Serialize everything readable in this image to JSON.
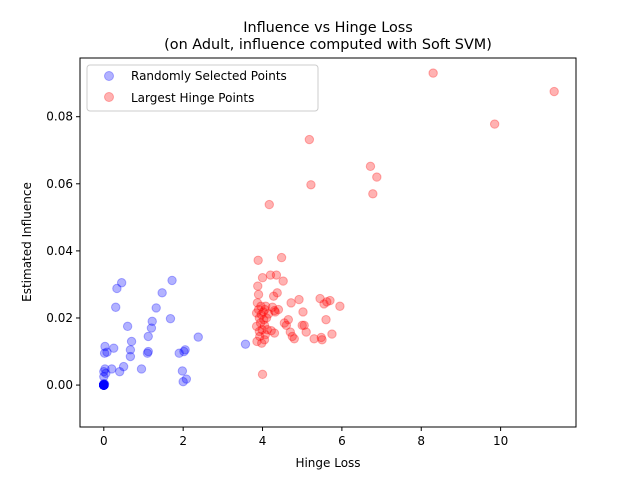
{
  "chart_data": {
    "type": "scatter",
    "title": "Influence vs Hinge Loss",
    "subtitle": "(on Adult, influence computed with Soft SVM)",
    "xlabel": "Hinge Loss",
    "ylabel": "Estimated Influence",
    "xlim": [
      -0.6,
      11.9
    ],
    "ylim": [
      -0.0125,
      0.0975
    ],
    "xticks": [
      0,
      2,
      4,
      6,
      8,
      10
    ],
    "xtick_labels": [
      "0",
      "2",
      "4",
      "6",
      "8",
      "10"
    ],
    "yticks": [
      0.0,
      0.02,
      0.04,
      0.06,
      0.08
    ],
    "ytick_labels": [
      "0.00",
      "0.02",
      "0.04",
      "0.06",
      "0.08"
    ],
    "grid": false,
    "legend_position": "upper-left",
    "series": [
      {
        "name": "Randomly Selected Points",
        "color": "#0000ff",
        "alpha": 0.3,
        "points": [
          [
            0,
            0
          ],
          [
            0,
            0
          ],
          [
            0,
            0
          ],
          [
            0,
            0
          ],
          [
            0,
            0
          ],
          [
            0,
            0
          ],
          [
            0,
            0
          ],
          [
            0,
            0
          ],
          [
            0,
            0
          ],
          [
            0,
            0
          ],
          [
            0,
            0
          ],
          [
            0,
            0
          ],
          [
            0,
            0
          ],
          [
            0,
            0
          ],
          [
            0,
            0
          ],
          [
            0,
            0
          ],
          [
            0,
            0
          ],
          [
            0,
            0
          ],
          [
            0,
            0
          ],
          [
            0,
            0
          ],
          [
            0,
            0
          ],
          [
            0,
            0
          ],
          [
            0,
            0
          ],
          [
            0,
            0
          ],
          [
            0,
            0
          ],
          [
            0,
            0
          ],
          [
            0,
            0
          ],
          [
            0,
            0
          ],
          [
            0,
            0
          ],
          [
            0,
            0
          ],
          [
            0,
            0
          ],
          [
            0,
            0
          ],
          [
            0,
            0
          ],
          [
            0,
            0
          ],
          [
            0,
            0
          ],
          [
            0,
            0
          ],
          [
            0,
            0
          ],
          [
            0,
            0
          ],
          [
            0,
            0
          ],
          [
            0,
            0
          ],
          [
            0,
            0.0002
          ],
          [
            0.02,
            0.0003
          ],
          [
            0,
            0.0004
          ],
          [
            0.01,
            0.0001
          ],
          [
            0,
            0.0025
          ],
          [
            0,
            0.004
          ],
          [
            0.03,
            0.0048
          ],
          [
            0.05,
            0.0035
          ],
          [
            0.02,
            0.0095
          ],
          [
            0.08,
            0.0098
          ],
          [
            0.03,
            0.0115
          ],
          [
            0.25,
            0.011
          ],
          [
            0.3,
            0.0232
          ],
          [
            0.33,
            0.0288
          ],
          [
            0.45,
            0.0305
          ],
          [
            0.2,
            0.0048
          ],
          [
            0.4,
            0.004
          ],
          [
            0.5,
            0.0055
          ],
          [
            0.6,
            0.0175
          ],
          [
            0.67,
            0.0085
          ],
          [
            0.67,
            0.0105
          ],
          [
            0.7,
            0.013
          ],
          [
            0.95,
            0.0048
          ],
          [
            1.1,
            0.0095
          ],
          [
            1.12,
            0.01
          ],
          [
            1.12,
            0.0145
          ],
          [
            1.2,
            0.017
          ],
          [
            1.22,
            0.019
          ],
          [
            1.32,
            0.023
          ],
          [
            1.47,
            0.0275
          ],
          [
            1.68,
            0.0198
          ],
          [
            1.72,
            0.0312
          ],
          [
            1.9,
            0.0095
          ],
          [
            1.98,
            0.0042
          ],
          [
            2.0,
            0.001
          ],
          [
            2.02,
            0.01
          ],
          [
            2.05,
            0.0105
          ],
          [
            2.08,
            0.0018
          ],
          [
            2.38,
            0.0143
          ],
          [
            3.57,
            0.0122
          ]
        ]
      },
      {
        "name": "Largest Hinge Points",
        "color": "#ff0000",
        "alpha": 0.3,
        "points": [
          [
            3.85,
            0.0215
          ],
          [
            3.85,
            0.0175
          ],
          [
            3.86,
            0.013
          ],
          [
            3.87,
            0.0245
          ],
          [
            3.88,
            0.0295
          ],
          [
            3.89,
            0.0372
          ],
          [
            3.9,
            0.027
          ],
          [
            3.9,
            0.0225
          ],
          [
            3.92,
            0.02
          ],
          [
            3.92,
            0.016
          ],
          [
            3.93,
            0.0145
          ],
          [
            3.95,
            0.0185
          ],
          [
            3.96,
            0.0235
          ],
          [
            3.97,
            0.021
          ],
          [
            3.98,
            0.0125
          ],
          [
            3.99,
            0.0165
          ],
          [
            4.0,
            0.032
          ],
          [
            4.0,
            0.0032
          ],
          [
            4.02,
            0.0218
          ],
          [
            4.03,
            0.0195
          ],
          [
            4.05,
            0.0178
          ],
          [
            4.05,
            0.0135
          ],
          [
            4.06,
            0.0225
          ],
          [
            4.07,
            0.015
          ],
          [
            4.08,
            0.0235
          ],
          [
            4.1,
            0.02
          ],
          [
            4.12,
            0.0165
          ],
          [
            4.15,
            0.0212
          ],
          [
            4.17,
            0.0538
          ],
          [
            4.2,
            0.0328
          ],
          [
            4.22,
            0.0162
          ],
          [
            4.25,
            0.0232
          ],
          [
            4.28,
            0.0265
          ],
          [
            4.3,
            0.0222
          ],
          [
            4.3,
            0.0155
          ],
          [
            4.32,
            0.0218
          ],
          [
            4.35,
            0.0328
          ],
          [
            4.37,
            0.0275
          ],
          [
            4.4,
            0.0225
          ],
          [
            4.48,
            0.038
          ],
          [
            4.52,
            0.031
          ],
          [
            4.55,
            0.0185
          ],
          [
            4.6,
            0.0178
          ],
          [
            4.65,
            0.0195
          ],
          [
            4.7,
            0.0158
          ],
          [
            4.72,
            0.0245
          ],
          [
            4.75,
            0.0145
          ],
          [
            4.8,
            0.0138
          ],
          [
            4.92,
            0.0255
          ],
          [
            5.0,
            0.0178
          ],
          [
            5.02,
            0.0218
          ],
          [
            5.05,
            0.0178
          ],
          [
            5.1,
            0.0158
          ],
          [
            5.18,
            0.0732
          ],
          [
            5.22,
            0.0597
          ],
          [
            5.3,
            0.0138
          ],
          [
            5.45,
            0.0258
          ],
          [
            5.48,
            0.0142
          ],
          [
            5.5,
            0.0135
          ],
          [
            5.55,
            0.0242
          ],
          [
            5.6,
            0.0195
          ],
          [
            5.62,
            0.0248
          ],
          [
            5.7,
            0.0252
          ],
          [
            5.75,
            0.0152
          ],
          [
            5.95,
            0.0235
          ],
          [
            6.72,
            0.0652
          ],
          [
            6.78,
            0.057
          ],
          [
            6.88,
            0.062
          ],
          [
            8.3,
            0.093
          ],
          [
            9.85,
            0.0778
          ],
          [
            11.35,
            0.0875
          ]
        ]
      }
    ]
  }
}
